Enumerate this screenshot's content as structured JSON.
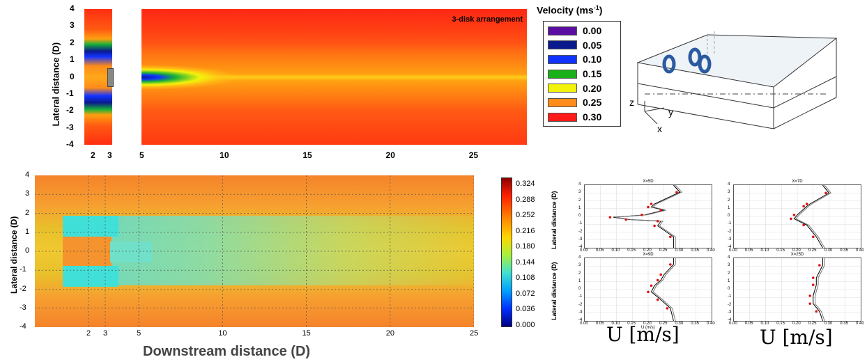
{
  "top_left": {
    "ylabel": "Lateral distance (D)",
    "yticks": [
      "4",
      "3",
      "2",
      "1",
      "0",
      "-1",
      "-2",
      "-3",
      "-4"
    ],
    "xticks_left": [
      "2",
      "3"
    ],
    "xticks_main": [
      "5",
      "10",
      "15",
      "20",
      "25"
    ],
    "annotation": "3-disk arrangement"
  },
  "legend": {
    "title": "Velocity (ms",
    "title_sup": "-1",
    "title_end": ")",
    "items": [
      {
        "label": "0.00",
        "color": "#5b0fa0"
      },
      {
        "label": "0.05",
        "color": "#0a1a8c"
      },
      {
        "label": "0.10",
        "color": "#1133ff"
      },
      {
        "label": "0.15",
        "color": "#19b019"
      },
      {
        "label": "0.20",
        "color": "#f2f20a"
      },
      {
        "label": "0.25",
        "color": "#ff8c1a"
      },
      {
        "label": "0.30",
        "color": "#ff1a1a"
      }
    ]
  },
  "schematic": {
    "axis_z": "z",
    "axis_y": "y",
    "axis_x": "x"
  },
  "bottom_left": {
    "ylabel": "Lateral distance (D)",
    "yticks": [
      "4",
      "3",
      "2",
      "1",
      "0",
      "-1",
      "-2",
      "-3",
      "-4"
    ],
    "xticks": [
      "2",
      "3",
      "5",
      "10",
      "15",
      "20",
      "25"
    ],
    "xlabel": "Downstream distance (D)"
  },
  "colorbar": {
    "ticks": [
      "0.324",
      "0.288",
      "0.252",
      "0.216",
      "0.180",
      "0.144",
      "0.108",
      "0.072",
      "0.036",
      "0.000"
    ]
  },
  "profiles": {
    "ylabel": "Lateral distance (D)",
    "xlabel_units": "U  [m/s]",
    "mini_xlabel": "U (m/s)",
    "xticks": [
      "0.00",
      "0.05",
      "0.10",
      "0.15",
      "0.20",
      "0.25",
      "0.30",
      "0.35",
      "0.40"
    ],
    "yticks": [
      "4",
      "3",
      "2",
      "1",
      "0",
      "-1",
      "-2",
      "-3",
      "-4"
    ],
    "panels": [
      {
        "title": "X=5D"
      },
      {
        "title": "X=7D"
      },
      {
        "title": "X=9D"
      },
      {
        "title": "X=25D"
      }
    ]
  },
  "chart_data": [
    {
      "type": "heatmap",
      "title": "3-disk arrangement",
      "xlabel": "",
      "ylabel": "Lateral distance (D)",
      "x_ticks": [
        2,
        3,
        5,
        10,
        15,
        20,
        25
      ],
      "y_range": [
        -4,
        4
      ],
      "colorbar_label": "Velocity (ms-1)",
      "levels": [
        0.0,
        0.05,
        0.1,
        0.15,
        0.2,
        0.25,
        0.3
      ]
    },
    {
      "type": "heatmap",
      "xlabel": "Downstream distance (D)",
      "ylabel": "Lateral distance (D)",
      "x_ticks": [
        2,
        3,
        5,
        10,
        15,
        20,
        25
      ],
      "y_range": [
        -4,
        4
      ],
      "colorbar_range": [
        0.0,
        0.324
      ]
    },
    {
      "type": "line",
      "title": "X=5D",
      "xlim": [
        0,
        0.4
      ],
      "ylim": [
        -4,
        4
      ],
      "scatter": [
        {
          "u": 0.08,
          "y": -0.1
        },
        {
          "u": 0.13,
          "y": -0.4
        },
        {
          "u": 0.18,
          "y": 0.2
        },
        {
          "u": 0.2,
          "y": 1.2
        },
        {
          "u": 0.21,
          "y": 1.6
        },
        {
          "u": 0.22,
          "y": -1.2
        },
        {
          "u": 0.23,
          "y": -0.6
        },
        {
          "u": 0.24,
          "y": 0.8
        },
        {
          "u": 0.27,
          "y": -2.6
        },
        {
          "u": 0.29,
          "y": 3.1
        }
      ]
    },
    {
      "type": "line",
      "title": "X=7D",
      "xlim": [
        0,
        0.4
      ],
      "ylim": [
        -4,
        4
      ],
      "scatter": [
        {
          "u": 0.18,
          "y": -0.3
        },
        {
          "u": 0.19,
          "y": 0.2
        },
        {
          "u": 0.22,
          "y": 1.3
        },
        {
          "u": 0.23,
          "y": 1.6
        },
        {
          "u": 0.22,
          "y": -1.1
        },
        {
          "u": 0.25,
          "y": -2.6
        },
        {
          "u": 0.29,
          "y": 3.0
        }
      ]
    },
    {
      "type": "line",
      "title": "X=9D",
      "xlim": [
        0,
        0.4
      ],
      "ylim": [
        -4,
        4
      ],
      "scatter": [
        {
          "u": 0.2,
          "y": -0.3
        },
        {
          "u": 0.21,
          "y": 0.5
        },
        {
          "u": 0.23,
          "y": 1.2
        },
        {
          "u": 0.24,
          "y": 1.9
        },
        {
          "u": 0.23,
          "y": -1.3
        },
        {
          "u": 0.26,
          "y": -2.4
        },
        {
          "u": 0.27,
          "y": 3.2
        }
      ]
    },
    {
      "type": "line",
      "title": "X=25D",
      "xlim": [
        0,
        0.4
      ],
      "ylim": [
        -4,
        4
      ],
      "scatter": [
        {
          "u": 0.24,
          "y": -0.8
        },
        {
          "u": 0.25,
          "y": 0.6
        },
        {
          "u": 0.25,
          "y": 1.5
        },
        {
          "u": 0.24,
          "y": -1.8
        },
        {
          "u": 0.26,
          "y": -2.8
        },
        {
          "u": 0.27,
          "y": 3.1
        }
      ]
    }
  ]
}
